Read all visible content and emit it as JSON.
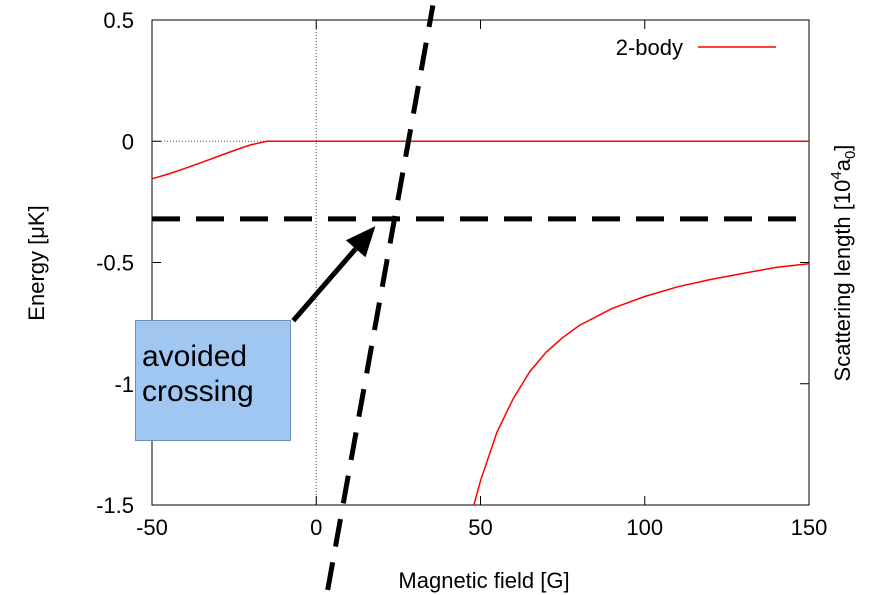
{
  "chart_data": {
    "type": "line",
    "xlabel": "Magnetic field [G]",
    "ylabel": "Energy [μK]",
    "y2label_prefix": "Scattering length [10",
    "y2label_sup": "4",
    "y2label_mid": "a",
    "y2label_sub": "0",
    "y2label_suffix": "]",
    "xlim": [
      -50,
      150
    ],
    "ylim": [
      -1.5,
      0.5
    ],
    "xticks": [
      -50,
      0,
      50,
      100,
      150
    ],
    "xtick_labels": [
      "-50",
      "0",
      "50",
      "100",
      "150"
    ],
    "yticks": [
      -1.5,
      -1,
      -0.5,
      0,
      0.5
    ],
    "ytick_labels": [
      "-1.5",
      "-1",
      "-0.5",
      "0",
      "0.5"
    ],
    "y2ticks": [
      -1,
      -0.5,
      0
    ],
    "legend_position": "top-right",
    "series": [
      {
        "name": "2-body",
        "color": "#ff0000",
        "style": "solid",
        "branches": [
          {
            "x": [
              -50,
              -45,
              -40,
              -35,
              -30,
              -25,
              -20,
              -15,
              -13,
              0,
              50,
              100,
              150
            ],
            "y": [
              -0.155,
              -0.135,
              -0.112,
              -0.088,
              -0.063,
              -0.038,
              -0.015,
              0.0,
              0.0,
              0.0,
              0.0,
              0.0,
              0.0
            ]
          },
          {
            "x": [
              48,
              50,
              55,
              60,
              65,
              70,
              75,
              80,
              90,
              100,
              110,
              120,
              130,
              140,
              150
            ],
            "y": [
              -1.5,
              -1.4,
              -1.2,
              -1.06,
              -0.95,
              -0.87,
              -0.81,
              -0.76,
              -0.69,
              -0.64,
              -0.6,
              -0.57,
              -0.545,
              -0.52,
              -0.505
            ]
          }
        ]
      },
      {
        "color": "#000000",
        "style": "dashed",
        "branches": [
          {
            "x": [
              -50,
              150
            ],
            "y": [
              -0.32,
              -0.32
            ]
          }
        ]
      },
      {
        "color": "#000000",
        "style": "dashed",
        "branches": [
          {
            "x": [
              3.5,
              35.5
            ],
            "y": [
              -1.85,
              0.56
            ]
          }
        ]
      }
    ],
    "reference_lines": [
      {
        "orientation": "vertical",
        "x": 0,
        "style": "dotted"
      },
      {
        "orientation": "horizontal",
        "y": 0,
        "style": "dotted"
      }
    ],
    "annotations": [
      {
        "lines": [
          "avoided",
          "crossing"
        ],
        "arrow_to": {
          "x": 18,
          "y": -0.35
        },
        "arrow_from": {
          "x": -7,
          "y": -0.74
        },
        "fill": "#9fc7f2"
      }
    ]
  }
}
